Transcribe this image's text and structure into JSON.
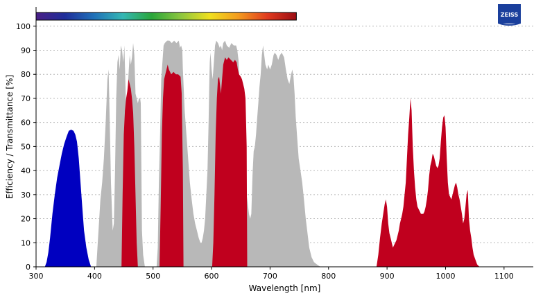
{
  "brand": {
    "logo_text": "ZEISS"
  },
  "chart_data": {
    "type": "area",
    "xlabel": "Wavelength [nm]",
    "ylabel": "Efficiency / Transmittance [%]",
    "xlim": [
      300,
      1150
    ],
    "ylim": [
      0,
      108
    ],
    "x_ticks": [
      300,
      400,
      500,
      600,
      700,
      800,
      900,
      1000,
      1100
    ],
    "y_ticks": [
      0,
      10,
      20,
      30,
      40,
      50,
      60,
      70,
      80,
      90,
      100
    ],
    "grid": "horizontal dotted",
    "spectrum_bar": {
      "range": [
        300,
        745
      ],
      "colors": [
        "#4a1f86",
        "#1f2e9a",
        "#1f70b8",
        "#34b7b4",
        "#2aa63a",
        "#8cc63f",
        "#f0e01e",
        "#f39a1e",
        "#e03a1e",
        "#9b0d14"
      ]
    },
    "series": [
      {
        "color": "#b8b8b8",
        "points": [
          [
            403,
            0
          ],
          [
            406,
            12
          ],
          [
            410,
            28
          ],
          [
            413,
            35
          ],
          [
            416,
            45
          ],
          [
            419,
            60
          ],
          [
            422,
            78
          ],
          [
            424,
            82
          ],
          [
            426,
            60
          ],
          [
            428,
            35
          ],
          [
            431,
            15
          ],
          [
            433,
            18
          ],
          [
            435,
            40
          ],
          [
            437,
            70
          ],
          [
            439,
            85
          ],
          [
            441,
            88
          ],
          [
            443,
            82
          ],
          [
            445,
            92
          ],
          [
            447,
            90
          ],
          [
            449,
            85
          ],
          [
            451,
            92
          ],
          [
            452,
            83
          ],
          [
            454,
            65
          ],
          [
            456,
            70
          ],
          [
            458,
            80
          ],
          [
            460,
            88
          ],
          [
            462,
            84
          ],
          [
            464,
            87
          ],
          [
            466,
            93
          ],
          [
            468,
            88
          ],
          [
            470,
            72
          ],
          [
            472,
            70
          ],
          [
            474,
            68
          ],
          [
            476,
            70
          ],
          [
            478,
            70
          ],
          [
            479,
            68
          ],
          [
            481,
            15
          ],
          [
            483,
            5
          ],
          [
            486,
            0
          ],
          [
            506,
            0
          ],
          [
            508,
            8
          ],
          [
            510,
            35
          ],
          [
            512,
            55
          ],
          [
            514,
            78
          ],
          [
            516,
            85
          ],
          [
            518,
            92
          ],
          [
            520,
            93
          ],
          [
            524,
            94
          ],
          [
            528,
            94
          ],
          [
            532,
            93
          ],
          [
            536,
            94
          ],
          [
            540,
            93
          ],
          [
            544,
            94
          ],
          [
            546,
            91
          ],
          [
            548,
            92
          ],
          [
            550,
            90
          ],
          [
            551,
            82
          ],
          [
            554,
            65
          ],
          [
            557,
            55
          ],
          [
            560,
            45
          ],
          [
            563,
            35
          ],
          [
            566,
            28
          ],
          [
            569,
            22
          ],
          [
            572,
            18
          ],
          [
            575,
            15
          ],
          [
            578,
            12
          ],
          [
            581,
            10
          ],
          [
            583,
            10
          ],
          [
            585,
            12
          ],
          [
            587,
            15
          ],
          [
            589,
            20
          ],
          [
            591,
            30
          ],
          [
            593,
            40
          ],
          [
            594,
            50
          ],
          [
            595,
            60
          ],
          [
            596,
            75
          ],
          [
            597,
            85
          ],
          [
            598,
            89
          ],
          [
            599,
            86
          ],
          [
            600,
            82
          ],
          [
            602,
            78
          ],
          [
            604,
            85
          ],
          [
            606,
            92
          ],
          [
            608,
            94
          ],
          [
            611,
            93
          ],
          [
            614,
            91
          ],
          [
            616,
            92
          ],
          [
            618,
            90
          ],
          [
            620,
            93
          ],
          [
            623,
            94
          ],
          [
            626,
            92
          ],
          [
            630,
            91
          ],
          [
            634,
            93
          ],
          [
            638,
            92
          ],
          [
            642,
            92
          ],
          [
            644,
            90
          ],
          [
            646,
            86
          ],
          [
            648,
            75
          ],
          [
            650,
            65
          ],
          [
            652,
            55
          ],
          [
            654,
            45
          ],
          [
            656,
            38
          ],
          [
            658,
            32
          ],
          [
            660,
            30
          ],
          [
            662,
            26
          ],
          [
            664,
            22
          ],
          [
            666,
            20
          ],
          [
            668,
            22
          ],
          [
            670,
            38
          ],
          [
            672,
            48
          ],
          [
            674,
            50
          ],
          [
            676,
            55
          ],
          [
            678,
            62
          ],
          [
            680,
            68
          ],
          [
            682,
            75
          ],
          [
            684,
            80
          ],
          [
            686,
            88
          ],
          [
            688,
            92
          ],
          [
            690,
            88
          ],
          [
            692,
            84
          ],
          [
            695,
            82
          ],
          [
            697,
            84
          ],
          [
            700,
            82
          ],
          [
            703,
            84
          ],
          [
            706,
            88
          ],
          [
            708,
            89
          ],
          [
            711,
            88
          ],
          [
            714,
            86
          ],
          [
            717,
            88
          ],
          [
            720,
            89
          ],
          [
            724,
            87
          ],
          [
            727,
            82
          ],
          [
            730,
            78
          ],
          [
            733,
            76
          ],
          [
            736,
            80
          ],
          [
            738,
            82
          ],
          [
            740,
            79
          ],
          [
            742,
            72
          ],
          [
            744,
            62
          ],
          [
            746,
            55
          ],
          [
            749,
            45
          ],
          [
            752,
            40
          ],
          [
            755,
            35
          ],
          [
            758,
            28
          ],
          [
            761,
            20
          ],
          [
            764,
            14
          ],
          [
            767,
            8
          ],
          [
            771,
            4
          ],
          [
            775,
            2
          ],
          [
            780,
            1
          ],
          [
            786,
            0
          ]
        ]
      },
      {
        "color": "#0000c0",
        "points": [
          [
            315,
            0
          ],
          [
            318,
            2
          ],
          [
            321,
            6
          ],
          [
            324,
            12
          ],
          [
            328,
            22
          ],
          [
            332,
            30
          ],
          [
            336,
            37
          ],
          [
            340,
            42
          ],
          [
            344,
            47
          ],
          [
            348,
            51
          ],
          [
            352,
            54
          ],
          [
            356,
            56.5
          ],
          [
            360,
            57
          ],
          [
            364,
            56.5
          ],
          [
            367,
            55
          ],
          [
            370,
            52
          ],
          [
            373,
            45
          ],
          [
            376,
            35
          ],
          [
            379,
            25
          ],
          [
            382,
            15
          ],
          [
            386,
            8
          ],
          [
            390,
            3
          ],
          [
            394,
            0
          ]
        ]
      },
      {
        "color": "#c0001e",
        "points": [
          [
            446,
            0
          ],
          [
            448,
            30
          ],
          [
            450,
            55
          ],
          [
            452,
            65
          ],
          [
            454,
            70
          ],
          [
            456,
            73
          ],
          [
            458,
            78
          ],
          [
            460,
            76
          ],
          [
            462,
            74
          ],
          [
            464,
            70
          ],
          [
            466,
            64
          ],
          [
            468,
            50
          ],
          [
            470,
            30
          ],
          [
            472,
            10
          ],
          [
            474,
            0
          ]
        ]
      },
      {
        "color": "#c0001e",
        "points": [
          [
            511,
            0
          ],
          [
            513,
            25
          ],
          [
            515,
            55
          ],
          [
            517,
            70
          ],
          [
            519,
            78
          ],
          [
            521,
            80
          ],
          [
            523,
            82
          ],
          [
            525,
            84
          ],
          [
            527,
            82
          ],
          [
            531,
            80
          ],
          [
            535,
            81
          ],
          [
            539,
            80
          ],
          [
            543,
            80
          ],
          [
            547,
            79
          ],
          [
            549,
            72
          ],
          [
            551,
            40
          ],
          [
            552,
            0
          ]
        ]
      },
      {
        "color": "#c0001e",
        "points": [
          [
            601,
            0
          ],
          [
            603,
            10
          ],
          [
            605,
            30
          ],
          [
            607,
            55
          ],
          [
            609,
            70
          ],
          [
            611,
            78
          ],
          [
            613,
            79
          ],
          [
            616,
            72
          ],
          [
            618,
            78
          ],
          [
            620,
            84
          ],
          [
            623,
            87
          ],
          [
            626,
            86
          ],
          [
            629,
            87
          ],
          [
            633,
            86
          ],
          [
            637,
            85
          ],
          [
            640,
            86
          ],
          [
            643,
            85
          ],
          [
            645,
            82
          ],
          [
            647,
            80
          ],
          [
            650,
            79
          ],
          [
            652,
            78
          ],
          [
            654,
            76
          ],
          [
            656,
            74
          ],
          [
            658,
            70
          ],
          [
            660,
            50
          ],
          [
            661,
            0
          ]
        ]
      },
      {
        "color": "#c0001e",
        "points": [
          [
            882,
            0
          ],
          [
            885,
            5
          ],
          [
            888,
            12
          ],
          [
            891,
            18
          ],
          [
            894,
            23
          ],
          [
            896,
            26
          ],
          [
            898,
            28
          ],
          [
            900,
            25
          ],
          [
            902,
            18
          ],
          [
            904,
            14
          ],
          [
            906,
            12
          ],
          [
            908,
            10
          ],
          [
            910,
            8
          ],
          [
            912,
            9
          ],
          [
            914,
            10
          ],
          [
            916,
            11
          ],
          [
            918,
            13
          ],
          [
            920,
            15
          ],
          [
            922,
            18
          ],
          [
            924,
            20
          ],
          [
            926,
            22
          ],
          [
            928,
            25
          ],
          [
            930,
            30
          ],
          [
            932,
            35
          ],
          [
            934,
            45
          ],
          [
            936,
            55
          ],
          [
            938,
            62
          ],
          [
            940,
            70
          ],
          [
            942,
            65
          ],
          [
            944,
            50
          ],
          [
            946,
            40
          ],
          [
            948,
            33
          ],
          [
            950,
            28
          ],
          [
            952,
            25
          ],
          [
            954,
            24
          ],
          [
            956,
            23
          ],
          [
            958,
            22
          ],
          [
            960,
            22
          ],
          [
            962,
            22
          ],
          [
            964,
            23
          ],
          [
            966,
            25
          ],
          [
            968,
            28
          ],
          [
            970,
            32
          ],
          [
            972,
            38
          ],
          [
            974,
            42
          ],
          [
            976,
            44
          ],
          [
            978,
            47
          ],
          [
            980,
            46
          ],
          [
            982,
            44
          ],
          [
            984,
            42
          ],
          [
            986,
            41
          ],
          [
            988,
            42
          ],
          [
            990,
            45
          ],
          [
            992,
            52
          ],
          [
            994,
            58
          ],
          [
            996,
            62
          ],
          [
            998,
            63
          ],
          [
            1000,
            58
          ],
          [
            1002,
            45
          ],
          [
            1004,
            35
          ],
          [
            1006,
            30
          ],
          [
            1008,
            29
          ],
          [
            1010,
            28
          ],
          [
            1012,
            30
          ],
          [
            1014,
            32
          ],
          [
            1016,
            34
          ],
          [
            1018,
            35
          ],
          [
            1020,
            33
          ],
          [
            1022,
            30
          ],
          [
            1024,
            28
          ],
          [
            1026,
            25
          ],
          [
            1028,
            22
          ],
          [
            1030,
            18
          ],
          [
            1032,
            20
          ],
          [
            1034,
            25
          ],
          [
            1036,
            30
          ],
          [
            1038,
            32
          ],
          [
            1040,
            20
          ],
          [
            1042,
            15
          ],
          [
            1044,
            12
          ],
          [
            1046,
            8
          ],
          [
            1048,
            5
          ],
          [
            1051,
            3
          ],
          [
            1054,
            1
          ],
          [
            1058,
            0
          ]
        ]
      }
    ]
  }
}
